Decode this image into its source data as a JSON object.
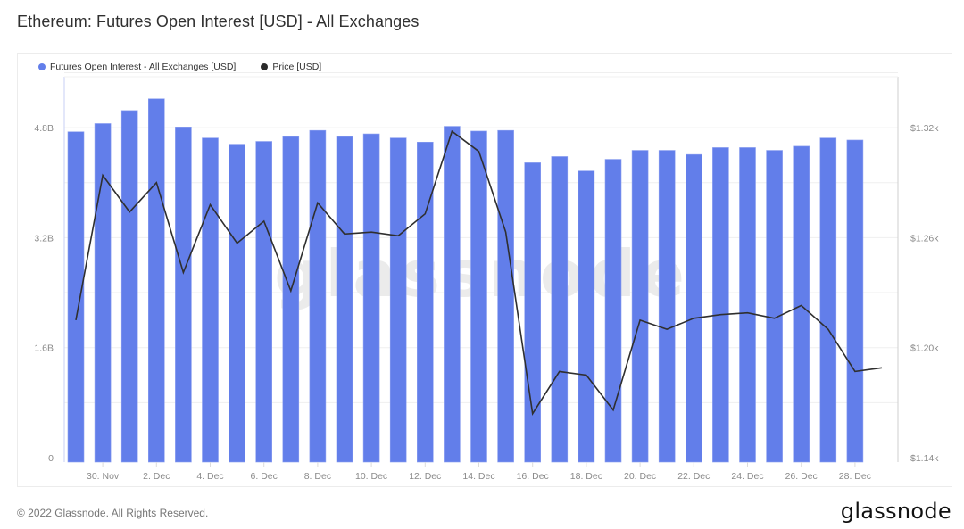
{
  "header": {
    "title": "Ethereum: Futures Open Interest [USD] - All Exchanges"
  },
  "legend": [
    {
      "label": "Futures Open Interest - All Exchanges [USD]",
      "color": "#627EEA"
    },
    {
      "label": "Price [USD]",
      "color": "#2a2a2a"
    }
  ],
  "watermark": "glassnode",
  "footer": {
    "copyright": "© 2022 Glassnode. All Rights Reserved.",
    "brand": "glassnode"
  },
  "colors": {
    "bar": "#627EEA",
    "line": "#2f2f2f",
    "grid": "#efefef",
    "axis_text": "#8a8a8a",
    "watermark": "#ebebeb"
  },
  "chart_data": {
    "type": "bar",
    "title": "Ethereum: Futures Open Interest [USD] - All Exchanges",
    "xlabel": "",
    "ylabel": "Futures Open Interest [USD]",
    "y2label": "Price [USD]",
    "legend_position": "top-left",
    "grid": true,
    "categories": [
      "29 Nov",
      "30 Nov",
      "1 Dec",
      "2 Dec",
      "3 Dec",
      "4 Dec",
      "5 Dec",
      "6 Dec",
      "7 Dec",
      "8 Dec",
      "9 Dec",
      "10 Dec",
      "11 Dec",
      "12 Dec",
      "13 Dec",
      "14 Dec",
      "15 Dec",
      "16 Dec",
      "17 Dec",
      "18 Dec",
      "19 Dec",
      "20 Dec",
      "21 Dec",
      "22 Dec",
      "23 Dec",
      "24 Dec",
      "25 Dec",
      "26 Dec",
      "27 Dec",
      "28 Dec"
    ],
    "x_tick_labels": [
      "30. Nov",
      "2. Dec",
      "4. Dec",
      "6. Dec",
      "8. Dec",
      "10. Dec",
      "12. Dec",
      "14. Dec",
      "16. Dec",
      "18. Dec",
      "20. Dec",
      "22. Dec",
      "24. Dec",
      "26. Dec",
      "28. Dec"
    ],
    "y_tick_labels": [
      "0",
      "1.6B",
      "3.2B",
      "4.8B"
    ],
    "y_ticks": [
      0,
      1.6,
      3.2,
      4.8
    ],
    "ylim": [
      0,
      6.4
    ],
    "y2_tick_labels": [
      "$1.14k",
      "$1.20k",
      "$1.26k",
      "$1.32k"
    ],
    "y2_ticks": [
      1.14,
      1.2,
      1.26,
      1.32
    ],
    "y2lim": [
      1.14,
      1.38
    ],
    "series": [
      {
        "name": "Futures Open Interest - All Exchanges [USD]",
        "type": "bar",
        "axis": "left",
        "unit": "B USD",
        "values": [
          4.74,
          4.86,
          5.05,
          5.22,
          4.81,
          4.65,
          4.56,
          4.6,
          4.67,
          4.76,
          4.67,
          4.71,
          4.65,
          4.59,
          4.82,
          4.75,
          4.76,
          4.29,
          4.38,
          4.17,
          4.34,
          4.47,
          4.47,
          4.41,
          4.51,
          4.51,
          4.47,
          4.53,
          4.65,
          4.62
        ]
      },
      {
        "name": "Price [USD]",
        "type": "line",
        "axis": "right",
        "unit": "k USD",
        "values": [
          1.215,
          1.294,
          1.274,
          1.29,
          1.241,
          1.278,
          1.257,
          1.269,
          1.231,
          1.279,
          1.262,
          1.263,
          1.261,
          1.273,
          1.318,
          1.307,
          1.263,
          1.164,
          1.187,
          1.185,
          1.166,
          1.215,
          1.21,
          1.216,
          1.218,
          1.219,
          1.216,
          1.223,
          1.21,
          1.187
        ],
        "last_point_partial": 1.189
      }
    ]
  }
}
